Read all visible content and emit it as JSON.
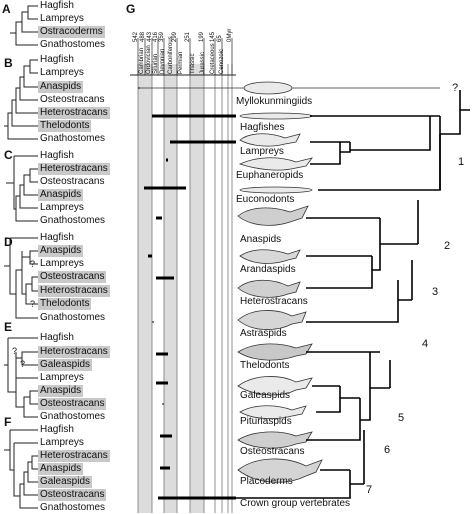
{
  "panels": {
    "A": {
      "letter": "A",
      "taxa": [
        {
          "name": "Hagfish",
          "hl": false
        },
        {
          "name": "Lampreys",
          "hl": false
        },
        {
          "name": "Ostracoderms",
          "hl": true
        },
        {
          "name": "Gnathostomes",
          "hl": false
        }
      ]
    },
    "B": {
      "letter": "B",
      "taxa": [
        {
          "name": "Hagfish",
          "hl": false
        },
        {
          "name": "Lampreys",
          "hl": false
        },
        {
          "name": "Anaspids",
          "hl": true
        },
        {
          "name": "Osteostracans",
          "hl": false
        },
        {
          "name": "Heterostracans",
          "hl": true
        },
        {
          "name": "Thelodonts",
          "hl": true
        },
        {
          "name": "Gnathostomes",
          "hl": false
        }
      ]
    },
    "C": {
      "letter": "C",
      "taxa": [
        {
          "name": "Hagfish",
          "hl": false
        },
        {
          "name": "Heterostracans",
          "hl": true
        },
        {
          "name": "Osteostracans",
          "hl": false
        },
        {
          "name": "Anaspids",
          "hl": true
        },
        {
          "name": "Lampreys",
          "hl": false
        },
        {
          "name": "Gnathostomes",
          "hl": false
        }
      ]
    },
    "D": {
      "letter": "D",
      "taxa": [
        {
          "name": "Hagfish",
          "hl": false
        },
        {
          "name": "Anaspids",
          "hl": true
        },
        {
          "name": "Lampreys",
          "hl": false
        },
        {
          "name": "Osteostracans",
          "hl": true
        },
        {
          "name": "Heterostracans",
          "hl": true
        },
        {
          "name": "Thelodonts",
          "hl": true
        },
        {
          "name": "Gnathostomes",
          "hl": false
        }
      ]
    },
    "E": {
      "letter": "E",
      "taxa": [
        {
          "name": "Hagfish",
          "hl": false
        },
        {
          "name": "Heterostracans",
          "hl": true
        },
        {
          "name": "Galeaspids",
          "hl": true
        },
        {
          "name": "Lampreys",
          "hl": false
        },
        {
          "name": "Anaspids",
          "hl": true
        },
        {
          "name": "Osteostracans",
          "hl": true
        },
        {
          "name": "Gnathostomes",
          "hl": false
        }
      ]
    },
    "F": {
      "letter": "F",
      "taxa": [
        {
          "name": "Hagfish",
          "hl": false
        },
        {
          "name": "Lampreys",
          "hl": false
        },
        {
          "name": "Heterostracans",
          "hl": true
        },
        {
          "name": "Anaspids",
          "hl": true
        },
        {
          "name": "Galeaspids",
          "hl": true
        },
        {
          "name": "Osteostracans",
          "hl": true
        },
        {
          "name": "Gnathostomes",
          "hl": false
        }
      ]
    }
  },
  "question_mark": "?",
  "timescale": {
    "letter": "G",
    "periods": [
      "Cambrian",
      "Ordovician",
      "Silurian",
      "Devonian",
      "Carboniferous",
      "Permian",
      "Triassic",
      "Jurassic",
      "Cretaceous",
      "Cenozoic"
    ],
    "ages": [
      "542",
      "488",
      "443",
      "416",
      "359",
      "299",
      "251",
      "199",
      "145",
      "65",
      "0Myr"
    ]
  },
  "taxa_g": [
    "Myllokunmingiids",
    "Hagfishes",
    "Lampreys",
    "Euphaneropids",
    "Euconodonts",
    "Anaspids",
    "Arandaspids",
    "Heterostracans",
    "Astraspids",
    "Thelodonts",
    "Galeaspids",
    "Pituriaspids",
    "Osteostracans",
    "Placoderms",
    "Crown group vertebrates"
  ],
  "node_numbers": [
    "1",
    "2",
    "3",
    "4",
    "5",
    "6",
    "7"
  ],
  "node_q": "?"
}
